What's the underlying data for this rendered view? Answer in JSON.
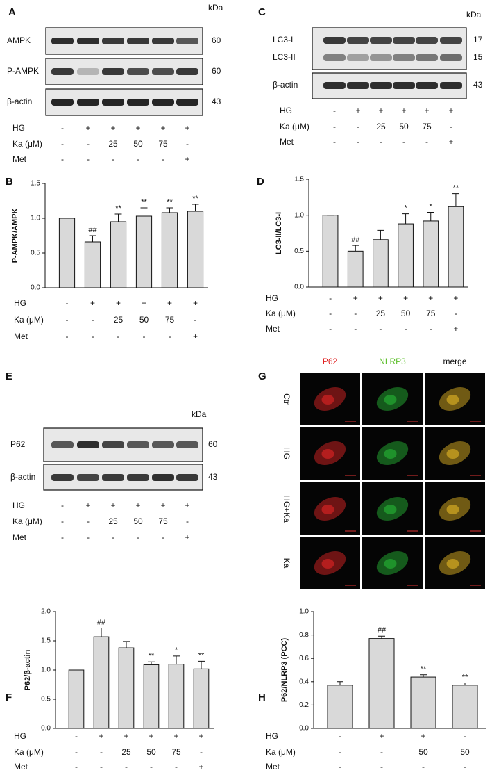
{
  "blots": [
    {
      "label": "A",
      "unit": "kDa",
      "rows": [
        {
          "name": "AMPK",
          "kda": 60
        },
        {
          "name": "P-AMPK",
          "kda": 60
        },
        {
          "name": "β-actin",
          "kda": 43
        }
      ],
      "treatments": [
        {
          "name": "HG",
          "values": [
            "-",
            "+",
            "+",
            "+",
            "+",
            "+"
          ]
        },
        {
          "name": "Ka (μM)",
          "values": [
            "-",
            "-",
            "25",
            "50",
            "75",
            "-"
          ]
        },
        {
          "name": "Met",
          "values": [
            "-",
            "-",
            "-",
            "-",
            "-",
            "+"
          ]
        }
      ]
    },
    {
      "label": "C",
      "unit": "kDa",
      "rows": [
        {
          "name": "LC3-I",
          "kda": 17
        },
        {
          "name": "LC3-II",
          "kda": 15
        },
        {
          "name": "β-actin",
          "kda": 43
        }
      ],
      "treatments": [
        {
          "name": "HG",
          "values": [
            "-",
            "+",
            "+",
            "+",
            "+",
            "+"
          ]
        },
        {
          "name": "Ka (μM)",
          "values": [
            "-",
            "-",
            "25",
            "50",
            "75",
            "-"
          ]
        },
        {
          "name": "Met",
          "values": [
            "-",
            "-",
            "-",
            "-",
            "-",
            "+"
          ]
        }
      ]
    },
    {
      "label": "E",
      "unit": "kDa",
      "rows": [
        {
          "name": "P62",
          "kda": 60
        },
        {
          "name": "β-actin",
          "kda": 43
        }
      ],
      "treatments": [
        {
          "name": "HG",
          "values": [
            "-",
            "+",
            "+",
            "+",
            "+",
            "+"
          ]
        },
        {
          "name": "Ka (μM)",
          "values": [
            "-",
            "-",
            "25",
            "50",
            "75",
            "-"
          ]
        },
        {
          "name": "Met",
          "values": [
            "-",
            "-",
            "-",
            "-",
            "-",
            "+"
          ]
        }
      ]
    }
  ],
  "imaging": {
    "label": "G",
    "columns": [
      "P62",
      "NLRP3",
      "merge"
    ],
    "rows": [
      "Ctr",
      "HG",
      "HG+Ka",
      "Ka"
    ]
  },
  "chart_data": [
    {
      "type": "bar",
      "label": "B",
      "ylabel": "P-AMPK/AMPK",
      "color": "#d9d9d9",
      "values": [
        1.0,
        0.66,
        0.95,
        1.03,
        1.08,
        1.1
      ],
      "errors": [
        0,
        0.09,
        0.11,
        0.12,
        0.07,
        0.1
      ],
      "annotations": [
        null,
        "##",
        "**",
        "**",
        "**",
        "**"
      ],
      "ylim": [
        0,
        1.5
      ],
      "yticks": [
        {
          "value": 0,
          "label": "0.0"
        },
        0.5,
        {
          "value": 1,
          "label": "1.0"
        },
        1.5
      ],
      "treatments": [
        {
          "name": "HG",
          "values": [
            "-",
            "+",
            "+",
            "+",
            "+",
            "+"
          ]
        },
        {
          "name": "Ka (μM)",
          "values": [
            "-",
            "-",
            "25",
            "50",
            "75",
            "-"
          ]
        },
        {
          "name": "Met",
          "values": [
            "-",
            "-",
            "-",
            "-",
            "-",
            "+"
          ]
        }
      ]
    },
    {
      "type": "bar",
      "label": "D",
      "ylabel": "LC3-II/LC3-I",
      "color": "#d9d9d9",
      "values": [
        1.0,
        0.5,
        0.66,
        0.88,
        0.92,
        1.12
      ],
      "errors": [
        0,
        0.08,
        0.13,
        0.14,
        0.12,
        0.18
      ],
      "annotations": [
        null,
        "##",
        null,
        "*",
        "*",
        "**"
      ],
      "ylim": [
        0,
        1.5
      ],
      "yticks": [
        {
          "value": 0,
          "label": "0.0"
        },
        0.5,
        {
          "value": 1,
          "label": "1.0"
        },
        1.5
      ],
      "treatments": [
        {
          "name": "HG",
          "values": [
            "-",
            "+",
            "+",
            "+",
            "+",
            "+"
          ]
        },
        {
          "name": "Ka (μM)",
          "values": [
            "-",
            "-",
            "25",
            "50",
            "75",
            "-"
          ]
        },
        {
          "name": "Met",
          "values": [
            "-",
            "-",
            "-",
            "-",
            "-",
            "+"
          ]
        }
      ]
    },
    {
      "type": "bar",
      "label": "F",
      "ylabel": "P62/β-actin",
      "color": "#d9d9d9",
      "values": [
        1.0,
        1.57,
        1.38,
        1.09,
        1.1,
        1.02
      ],
      "errors": [
        0,
        0.15,
        0.11,
        0.05,
        0.14,
        0.13
      ],
      "annotations": [
        null,
        "##",
        null,
        "**",
        "*",
        "**"
      ],
      "ylim": [
        0,
        2
      ],
      "yticks": [
        {
          "value": 0,
          "label": "0.0"
        },
        0.5,
        {
          "value": 1,
          "label": "1.0"
        },
        1.5,
        {
          "value": 2,
          "label": "2.0"
        }
      ],
      "treatments": [
        {
          "name": "HG",
          "values": [
            "-",
            "+",
            "+",
            "+",
            "+",
            "+"
          ]
        },
        {
          "name": "Ka (μM)",
          "values": [
            "-",
            "-",
            "25",
            "50",
            "75",
            "-"
          ]
        },
        {
          "name": "Met",
          "values": [
            "-",
            "-",
            "-",
            "-",
            "-",
            "+"
          ]
        }
      ]
    },
    {
      "type": "bar",
      "label": "H",
      "ylabel": "P62/NLRP3 (PCC)",
      "color": "#d9d9d9",
      "values": [
        0.37,
        0.77,
        0.44,
        0.37
      ],
      "errors": [
        0.03,
        0.02,
        0.02,
        0.02
      ],
      "annotations": [
        null,
        "##",
        "**",
        "**"
      ],
      "ylim": [
        0,
        1
      ],
      "yticks": [
        {
          "value": 0,
          "label": "0.0"
        },
        0.2,
        0.4,
        0.6,
        0.8,
        {
          "value": 1,
          "label": "1.0"
        }
      ],
      "treatments": [
        {
          "name": "HG",
          "values": [
            "-",
            "+",
            "+",
            "-"
          ]
        },
        {
          "name": "Ka (μM)",
          "values": [
            "-",
            "-",
            "50",
            "50"
          ]
        },
        {
          "name": "Met",
          "values": [
            "-",
            "-",
            "-",
            "-"
          ]
        }
      ]
    }
  ]
}
